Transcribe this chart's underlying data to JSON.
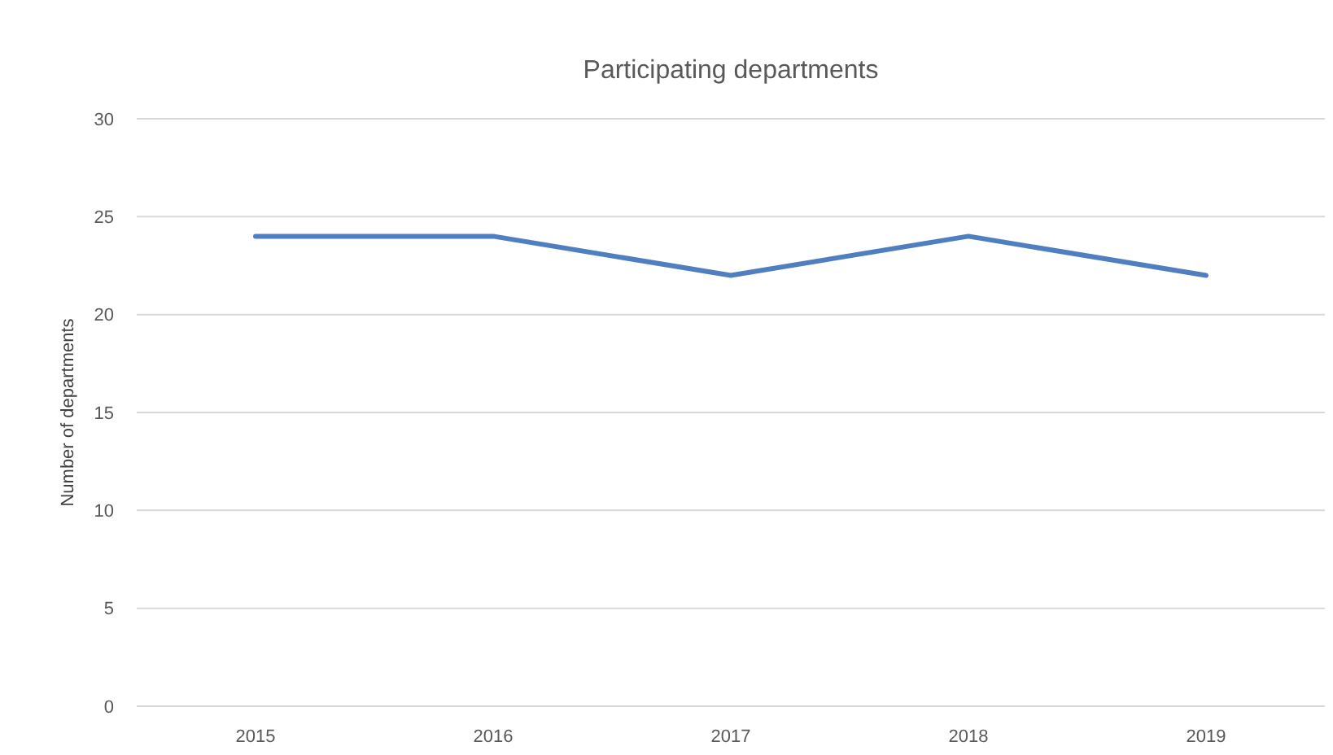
{
  "chart_data": {
    "type": "line",
    "title": "Participating departments",
    "ylabel": "Number of departments",
    "categories": [
      "2015",
      "2016",
      "2017",
      "2018",
      "2019"
    ],
    "series": [
      {
        "color": "#4f7fbf",
        "values": [
          24,
          24,
          22,
          24,
          22
        ]
      }
    ],
    "ylim": [
      0,
      30
    ],
    "yticks": [
      0,
      5,
      10,
      15,
      20,
      25,
      30
    ],
    "grid": "y",
    "marker": "none",
    "line_style": "solid"
  }
}
